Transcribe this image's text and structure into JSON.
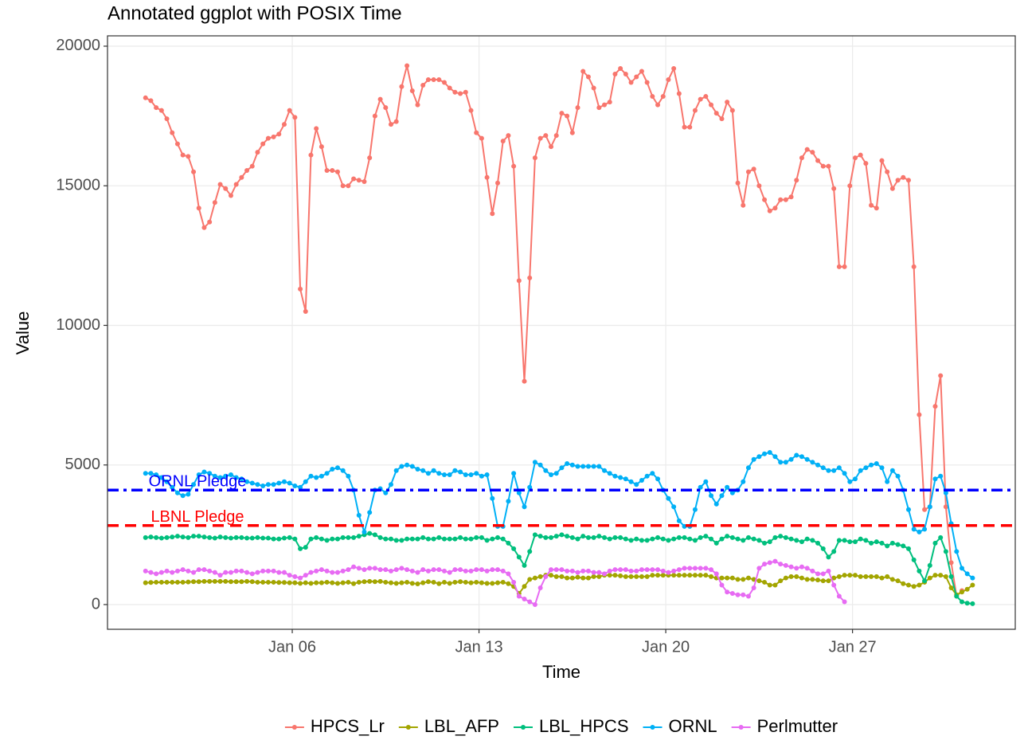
{
  "chart_data": {
    "type": "line",
    "title": "Annotated ggplot with POSIX Time",
    "xlabel": "Time",
    "ylabel": "Value",
    "xlim": [
      -0.925,
      33.1
    ],
    "ylim": [
      -885,
      20370
    ],
    "xticks": [
      {
        "value": 6,
        "label": "Jan 06"
      },
      {
        "value": 13,
        "label": "Jan 13"
      },
      {
        "value": 20,
        "label": "Jan 20"
      },
      {
        "value": 27,
        "label": "Jan 27"
      }
    ],
    "yticks": [
      0,
      5000,
      10000,
      15000,
      20000
    ],
    "grid": true,
    "legend": "bottom",
    "x": [
      0.5,
      0.7,
      0.9,
      1.1,
      1.3,
      1.5,
      1.7,
      1.9,
      2.1,
      2.3,
      2.5,
      2.7,
      2.9,
      3.1,
      3.3,
      3.5,
      3.7,
      3.9,
      4.1,
      4.3,
      4.5,
      4.7,
      4.9,
      5.1,
      5.3,
      5.5,
      5.7,
      5.9,
      6.1,
      6.3,
      6.5,
      6.7,
      6.9,
      7.1,
      7.3,
      7.5,
      7.7,
      7.9,
      8.1,
      8.3,
      8.5,
      8.7,
      8.9,
      9.1,
      9.3,
      9.5,
      9.7,
      9.9,
      10.1,
      10.3,
      10.5,
      10.7,
      10.9,
      11.1,
      11.3,
      11.5,
      11.7,
      11.9,
      12.1,
      12.3,
      12.5,
      12.7,
      12.9,
      13.1,
      13.3,
      13.5,
      13.7,
      13.9,
      14.1,
      14.3,
      14.5,
      14.7,
      14.9,
      15.1,
      15.3,
      15.5,
      15.7,
      15.9,
      16.1,
      16.3,
      16.5,
      16.7,
      16.9,
      17.1,
      17.3,
      17.5,
      17.7,
      17.9,
      18.1,
      18.3,
      18.5,
      18.7,
      18.9,
      19.1,
      19.3,
      19.5,
      19.7,
      19.9,
      20.1,
      20.3,
      20.5,
      20.7,
      20.9,
      21.1,
      21.3,
      21.5,
      21.7,
      21.9,
      22.1,
      22.3,
      22.5,
      22.7,
      22.9,
      23.1,
      23.3,
      23.5,
      23.7,
      23.9,
      24.1,
      24.3,
      24.5,
      24.7,
      24.9,
      25.1,
      25.3,
      25.5,
      25.7,
      25.9,
      26.1,
      26.3,
      26.5,
      26.7,
      26.9,
      27.1,
      27.3,
      27.5,
      27.7,
      27.9,
      28.1,
      28.3,
      28.5,
      28.7,
      28.9,
      29.1,
      29.3,
      29.5,
      29.7,
      29.9,
      30.1,
      30.3,
      30.5,
      30.7,
      30.9,
      31.1,
      31.3,
      31.5
    ],
    "series": [
      {
        "name": "HPCS_Lr",
        "color": "#F8766D",
        "values": [
          18150,
          18050,
          17800,
          17700,
          17400,
          16900,
          16500,
          16100,
          16050,
          15500,
          14200,
          13500,
          13700,
          14400,
          15050,
          14900,
          14650,
          15050,
          15300,
          15550,
          15700,
          16200,
          16500,
          16700,
          16750,
          16850,
          17200,
          17700,
          17450,
          11300,
          10500,
          16100,
          17050,
          16400,
          15550,
          15550,
          15500,
          15000,
          15000,
          15250,
          15200,
          15150,
          16000,
          17500,
          18100,
          17800,
          17200,
          17300,
          18550,
          19300,
          18400,
          17900,
          18600,
          18800,
          18800,
          18800,
          18700,
          18500,
          18350,
          18300,
          18350,
          17700,
          16900,
          16700,
          15300,
          14000,
          15100,
          16600,
          16800,
          15700,
          11600,
          8000,
          11700,
          16000,
          16700,
          16800,
          16400,
          16800,
          17600,
          17500,
          16900,
          17800,
          19100,
          18900,
          18500,
          17800,
          17900,
          18000,
          19000,
          19200,
          19000,
          18700,
          18900,
          19100,
          18700,
          18200,
          17900,
          18200,
          18800,
          19200,
          18300,
          17100,
          17100,
          17700,
          18100,
          18200,
          17900,
          17600,
          17400,
          18000,
          17700,
          15100,
          14300,
          15500,
          15600,
          15000,
          14500,
          14100,
          14200,
          14500,
          14500,
          14600,
          15200,
          16000,
          16300,
          16200,
          15900,
          15700,
          15700,
          14900,
          12100,
          12100,
          15000,
          16000,
          16100,
          15800,
          14300,
          14200,
          15900,
          15500,
          14900,
          15200,
          15300,
          15200,
          12100,
          6800,
          3400,
          3500,
          7100,
          8200,
          3500,
          1500,
          300,
          500,
          null,
          null
        ]
      },
      {
        "name": "LBL_AFP",
        "color": "#A3A500",
        "values": [
          780,
          790,
          800,
          800,
          800,
          800,
          800,
          800,
          810,
          820,
          820,
          830,
          830,
          830,
          830,
          830,
          820,
          820,
          820,
          830,
          820,
          800,
          800,
          800,
          800,
          790,
          790,
          780,
          780,
          760,
          780,
          760,
          780,
          780,
          800,
          780,
          760,
          780,
          800,
          750,
          800,
          820,
          830,
          820,
          830,
          800,
          780,
          760,
          780,
          800,
          760,
          740,
          780,
          820,
          800,
          750,
          800,
          760,
          800,
          820,
          800,
          780,
          800,
          780,
          760,
          760,
          780,
          800,
          750,
          650,
          400,
          650,
          900,
          950,
          1000,
          1050,
          1050,
          1000,
          1000,
          950,
          950,
          980,
          950,
          950,
          1000,
          1000,
          1050,
          1050,
          1050,
          1030,
          1000,
          1000,
          1000,
          1000,
          1000,
          1050,
          1050,
          1050,
          1050,
          1050,
          1050,
          1050,
          1050,
          1050,
          1050,
          1050,
          1000,
          950,
          950,
          950,
          950,
          900,
          900,
          950,
          900,
          850,
          800,
          700,
          700,
          850,
          950,
          1000,
          1000,
          950,
          900,
          900,
          880,
          850,
          850,
          950,
          1000,
          1050,
          1050,
          1050,
          1000,
          1000,
          1000,
          1000,
          950,
          1000,
          900,
          850,
          750,
          700,
          650,
          700,
          800,
          950,
          1050,
          1050,
          1000,
          600,
          350,
          450,
          550,
          700
        ]
      },
      {
        "name": "LBL_HPCS",
        "color": "#00BF7D",
        "values": [
          2400,
          2420,
          2400,
          2380,
          2400,
          2420,
          2450,
          2420,
          2400,
          2450,
          2450,
          2420,
          2400,
          2380,
          2420,
          2400,
          2380,
          2400,
          2400,
          2380,
          2380,
          2400,
          2380,
          2380,
          2350,
          2350,
          2380,
          2400,
          2350,
          2000,
          2050,
          2350,
          2400,
          2350,
          2300,
          2350,
          2350,
          2400,
          2400,
          2400,
          2450,
          2500,
          2550,
          2500,
          2400,
          2350,
          2350,
          2300,
          2300,
          2350,
          2350,
          2350,
          2400,
          2350,
          2350,
          2400,
          2350,
          2350,
          2350,
          2400,
          2350,
          2350,
          2400,
          2400,
          2300,
          2350,
          2400,
          2350,
          2200,
          2000,
          1700,
          1400,
          1900,
          2500,
          2450,
          2400,
          2400,
          2450,
          2500,
          2450,
          2400,
          2350,
          2450,
          2400,
          2400,
          2450,
          2400,
          2350,
          2400,
          2400,
          2350,
          2300,
          2350,
          2300,
          2300,
          2350,
          2400,
          2350,
          2300,
          2350,
          2400,
          2400,
          2350,
          2300,
          2400,
          2450,
          2350,
          2200,
          2350,
          2450,
          2400,
          2350,
          2300,
          2400,
          2350,
          2300,
          2200,
          2250,
          2400,
          2450,
          2400,
          2350,
          2300,
          2250,
          2350,
          2300,
          2200,
          2000,
          1700,
          1900,
          2300,
          2300,
          2250,
          2250,
          2350,
          2300,
          2200,
          2250,
          2200,
          2100,
          2200,
          2150,
          2100,
          2000,
          1600,
          1200,
          850,
          1400,
          2200,
          2400,
          1900,
          1000,
          300,
          100,
          50,
          30
        ]
      },
      {
        "name": "ORNL",
        "color": "#00B0F6",
        "values": [
          4700,
          4700,
          4650,
          4550,
          4400,
          4200,
          4000,
          3900,
          3950,
          4300,
          4650,
          4750,
          4700,
          4600,
          4550,
          4600,
          4650,
          4550,
          4500,
          4400,
          4350,
          4300,
          4250,
          4300,
          4300,
          4350,
          4400,
          4350,
          4250,
          4200,
          4400,
          4600,
          4550,
          4600,
          4700,
          4850,
          4900,
          4800,
          4600,
          4100,
          3200,
          2600,
          3300,
          4100,
          4150,
          4000,
          4300,
          4800,
          4950,
          5000,
          4950,
          4850,
          4800,
          4700,
          4800,
          4700,
          4650,
          4650,
          4800,
          4750,
          4650,
          4650,
          4700,
          4600,
          4650,
          3800,
          2800,
          2800,
          3700,
          4700,
          4000,
          3500,
          4200,
          5100,
          5000,
          4800,
          4650,
          4700,
          4900,
          5050,
          5000,
          4950,
          4950,
          4950,
          4950,
          4950,
          4800,
          4700,
          4600,
          4550,
          4500,
          4400,
          4300,
          4450,
          4600,
          4700,
          4500,
          4100,
          3800,
          3500,
          3000,
          2800,
          2800,
          3400,
          4200,
          4400,
          3900,
          3600,
          3900,
          4200,
          4000,
          4100,
          4400,
          4900,
          5200,
          5300,
          5400,
          5450,
          5300,
          5100,
          5100,
          5200,
          5350,
          5300,
          5200,
          5100,
          5000,
          4900,
          4800,
          4800,
          4900,
          4700,
          4400,
          4500,
          4800,
          4900,
          5000,
          5050,
          4900,
          4400,
          4800,
          4600,
          4100,
          3400,
          2700,
          2600,
          2700,
          3500,
          4500,
          4600,
          4000,
          2900,
          1900,
          1300,
          1100,
          950
        ]
      },
      {
        "name": "Perlmutter",
        "color": "#E76BF3",
        "values": [
          1200,
          1150,
          1100,
          1150,
          1200,
          1150,
          1200,
          1250,
          1200,
          1150,
          1250,
          1250,
          1200,
          1150,
          1050,
          1150,
          1150,
          1200,
          1200,
          1150,
          1100,
          1150,
          1200,
          1200,
          1200,
          1150,
          1150,
          1050,
          1000,
          950,
          1050,
          1150,
          1200,
          1250,
          1200,
          1150,
          1150,
          1200,
          1250,
          1350,
          1300,
          1250,
          1300,
          1300,
          1250,
          1250,
          1200,
          1250,
          1300,
          1250,
          1200,
          1150,
          1250,
          1200,
          1250,
          1250,
          1200,
          1150,
          1250,
          1250,
          1200,
          1200,
          1250,
          1250,
          1200,
          1250,
          1250,
          1200,
          1100,
          800,
          300,
          200,
          100,
          0,
          600,
          1000,
          1250,
          1250,
          1250,
          1200,
          1200,
          1150,
          1200,
          1200,
          1150,
          1150,
          1100,
          1200,
          1250,
          1250,
          1250,
          1200,
          1200,
          1250,
          1250,
          1250,
          1250,
          1200,
          1150,
          1200,
          1250,
          1300,
          1300,
          1300,
          1300,
          1300,
          1250,
          1100,
          700,
          450,
          400,
          350,
          350,
          300,
          600,
          1300,
          1450,
          1500,
          1550,
          1450,
          1400,
          1350,
          1300,
          1350,
          1300,
          1200,
          1100,
          1100,
          1200,
          700,
          300,
          100,
          null,
          null,
          null,
          null,
          null,
          null,
          null,
          null,
          null,
          null,
          null,
          null,
          null,
          null,
          null,
          null,
          null,
          null,
          null,
          null,
          null,
          null,
          null,
          null
        ]
      }
    ],
    "hlines": [
      {
        "label": "ORNL Pledge",
        "value": 4100,
        "color": "#0000FF",
        "dash": "dotdash"
      },
      {
        "label": "LBNL Pledge",
        "value": 2830,
        "color": "#FF0000",
        "dash": "dashed"
      }
    ]
  }
}
